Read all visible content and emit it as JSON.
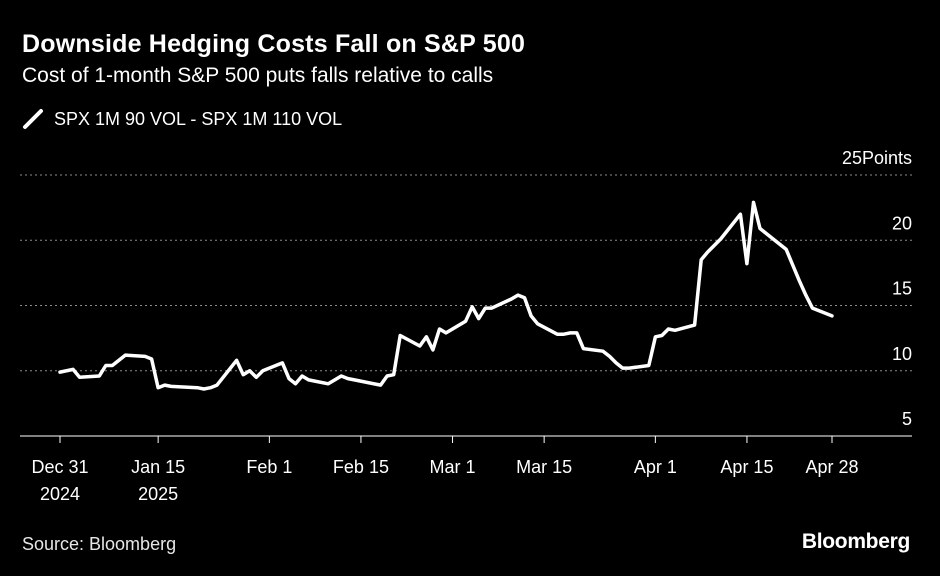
{
  "header": {
    "title": "Downside Hedging Costs Fall on S&P 500",
    "subtitle": "Cost of 1-month S&P 500 puts falls relative to calls"
  },
  "footer": {
    "source": "Source: Bloomberg",
    "brand": "Bloomberg"
  },
  "colors": {
    "background": "#000000",
    "line": "#ffffff",
    "grid": "#8c8c8c"
  },
  "chart_data": {
    "type": "line",
    "title": "Downside Hedging Costs Fall on S&P 500",
    "subtitle": "Cost of 1-month S&P 500 puts falls relative to calls",
    "unit": "Points",
    "legend_position": "top-left",
    "grid": true,
    "ylim": [
      5,
      25
    ],
    "yticks": [
      {
        "value": 25,
        "label": "25Points"
      },
      {
        "value": 20,
        "label": "20"
      },
      {
        "value": 15,
        "label": "15"
      },
      {
        "value": 10,
        "label": "10"
      },
      {
        "value": 5,
        "label": "5"
      }
    ],
    "xlim": [
      "2024-12-31",
      "2025-04-28"
    ],
    "xticks": [
      {
        "date": "2024-12-31",
        "line1": "Dec 31",
        "line2": "2024"
      },
      {
        "date": "2025-01-15",
        "line1": "Jan 15",
        "line2": "2025"
      },
      {
        "date": "2025-02-01",
        "line1": "Feb 1",
        "line2": ""
      },
      {
        "date": "2025-02-15",
        "line1": "Feb 15",
        "line2": ""
      },
      {
        "date": "2025-03-01",
        "line1": "Mar 1",
        "line2": ""
      },
      {
        "date": "2025-03-15",
        "line1": "Mar 15",
        "line2": ""
      },
      {
        "date": "2025-04-01",
        "line1": "Apr 1",
        "line2": ""
      },
      {
        "date": "2025-04-15",
        "line1": "Apr 15",
        "line2": ""
      },
      {
        "date": "2025-04-28",
        "line1": "Apr 28",
        "line2": ""
      }
    ],
    "series": [
      {
        "name": "SPX 1M 90 VOL - SPX 1M 110 VOL",
        "points": [
          [
            "2024-12-31",
            9.9
          ],
          [
            "2025-01-02",
            10.1
          ],
          [
            "2025-01-03",
            9.5
          ],
          [
            "2025-01-06",
            9.6
          ],
          [
            "2025-01-07",
            10.4
          ],
          [
            "2025-01-08",
            10.4
          ],
          [
            "2025-01-10",
            11.2
          ],
          [
            "2025-01-13",
            11.1
          ],
          [
            "2025-01-14",
            10.9
          ],
          [
            "2025-01-15",
            8.7
          ],
          [
            "2025-01-16",
            8.9
          ],
          [
            "2025-01-17",
            8.8
          ],
          [
            "2025-01-21",
            8.7
          ],
          [
            "2025-01-22",
            8.6
          ],
          [
            "2025-01-23",
            8.7
          ],
          [
            "2025-01-24",
            8.9
          ],
          [
            "2025-01-27",
            10.8
          ],
          [
            "2025-01-28",
            9.7
          ],
          [
            "2025-01-29",
            10.0
          ],
          [
            "2025-01-30",
            9.5
          ],
          [
            "2025-01-31",
            10.0
          ],
          [
            "2025-02-03",
            10.6
          ],
          [
            "2025-02-04",
            9.4
          ],
          [
            "2025-02-05",
            9.0
          ],
          [
            "2025-02-06",
            9.6
          ],
          [
            "2025-02-07",
            9.3
          ],
          [
            "2025-02-10",
            9.0
          ],
          [
            "2025-02-11",
            9.3
          ],
          [
            "2025-02-12",
            9.6
          ],
          [
            "2025-02-13",
            9.4
          ],
          [
            "2025-02-14",
            9.3
          ],
          [
            "2025-02-18",
            8.9
          ],
          [
            "2025-02-19",
            9.6
          ],
          [
            "2025-02-20",
            9.7
          ],
          [
            "2025-02-21",
            12.7
          ],
          [
            "2025-02-24",
            11.9
          ],
          [
            "2025-02-25",
            12.6
          ],
          [
            "2025-02-26",
            11.6
          ],
          [
            "2025-02-27",
            13.2
          ],
          [
            "2025-02-28",
            12.9
          ],
          [
            "2025-03-03",
            13.8
          ],
          [
            "2025-03-04",
            14.9
          ],
          [
            "2025-03-05",
            14.0
          ],
          [
            "2025-03-06",
            14.8
          ],
          [
            "2025-03-07",
            14.8
          ],
          [
            "2025-03-10",
            15.5
          ],
          [
            "2025-03-11",
            15.8
          ],
          [
            "2025-03-12",
            15.6
          ],
          [
            "2025-03-13",
            14.2
          ],
          [
            "2025-03-14",
            13.6
          ],
          [
            "2025-03-17",
            12.8
          ],
          [
            "2025-03-18",
            12.8
          ],
          [
            "2025-03-19",
            12.9
          ],
          [
            "2025-03-20",
            12.9
          ],
          [
            "2025-03-21",
            11.7
          ],
          [
            "2025-03-24",
            11.5
          ],
          [
            "2025-03-25",
            11.1
          ],
          [
            "2025-03-26",
            10.6
          ],
          [
            "2025-03-27",
            10.2
          ],
          [
            "2025-03-28",
            10.2
          ],
          [
            "2025-03-31",
            10.4
          ],
          [
            "2025-04-01",
            12.6
          ],
          [
            "2025-04-02",
            12.7
          ],
          [
            "2025-04-03",
            13.2
          ],
          [
            "2025-04-04",
            13.1
          ],
          [
            "2025-04-07",
            13.5
          ],
          [
            "2025-04-08",
            18.5
          ],
          [
            "2025-04-09",
            19.1
          ],
          [
            "2025-04-10",
            19.6
          ],
          [
            "2025-04-11",
            20.1
          ],
          [
            "2025-04-14",
            22.0
          ],
          [
            "2025-04-15",
            18.2
          ],
          [
            "2025-04-16",
            22.9
          ],
          [
            "2025-04-17",
            20.9
          ],
          [
            "2025-04-21",
            19.3
          ],
          [
            "2025-04-22",
            18.1
          ],
          [
            "2025-04-23",
            16.9
          ],
          [
            "2025-04-24",
            15.8
          ],
          [
            "2025-04-25",
            14.8
          ],
          [
            "2025-04-28",
            14.2
          ]
        ]
      }
    ]
  }
}
